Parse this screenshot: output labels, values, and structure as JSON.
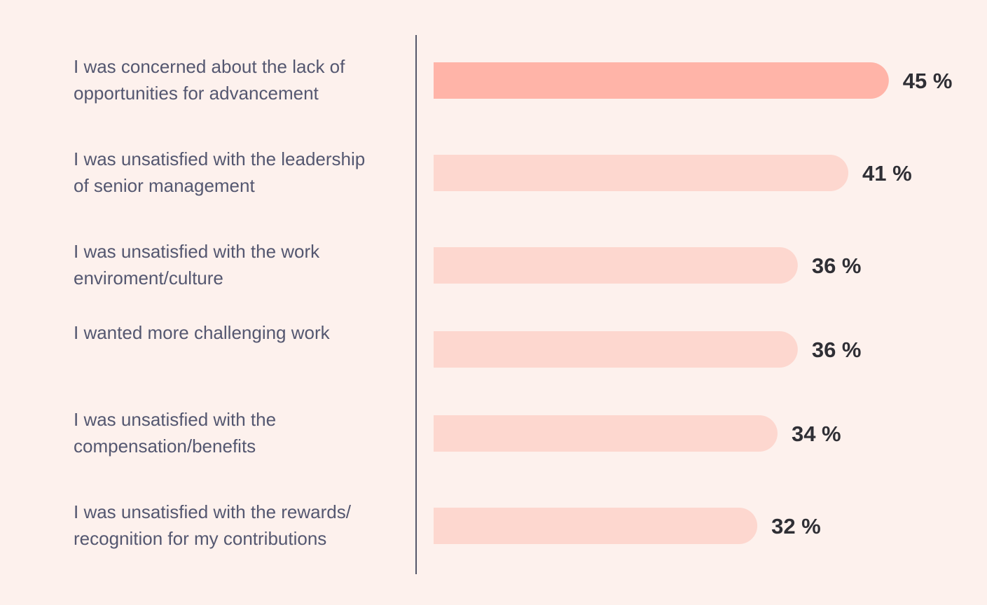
{
  "chart_data": {
    "type": "bar",
    "orientation": "horizontal",
    "categories": [
      [
        "I was concerned about the lack of",
        "opportunities for advancement"
      ],
      [
        "I was unsatisfied with the leadership",
        "of senior management"
      ],
      [
        "I was unsatisfied with the work",
        "enviroment/culture"
      ],
      [
        "I wanted more challenging work"
      ],
      [
        "I was unsatisfied with the",
        "compensation/benefits"
      ],
      [
        "I was unsatisfied with the rewards/",
        "recognition for my contributions"
      ]
    ],
    "values": [
      45,
      41,
      36,
      36,
      34,
      32
    ],
    "value_labels": [
      "45 %",
      "41 %",
      "36 %",
      "36 %",
      "34 %",
      "32 %"
    ],
    "unit": "%",
    "highlight_index": 0,
    "colors": {
      "background": "#fdf1ed",
      "highlight_bar": "#ffb4a8",
      "bar": "#fdd7cf",
      "axis": "#55586a",
      "category_text": "#545770",
      "value_text": "#2f2f35"
    }
  }
}
